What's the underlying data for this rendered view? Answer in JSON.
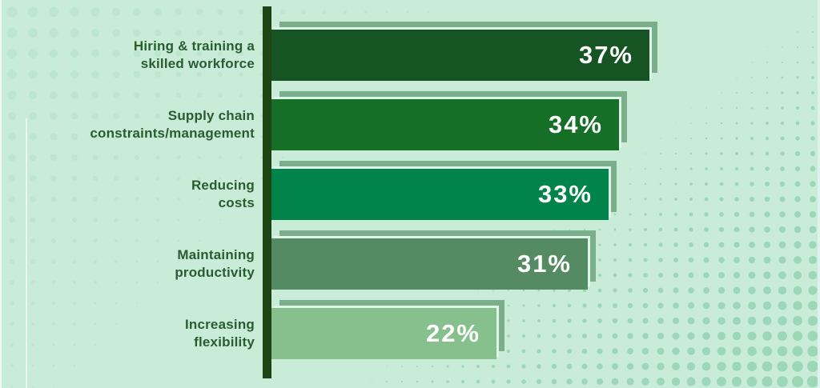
{
  "chart_data": {
    "type": "bar",
    "orientation": "horizontal",
    "title": "",
    "xlabel": "",
    "ylabel": "",
    "legend": "none",
    "gridlines": "none",
    "unit": "%",
    "categories": [
      "Hiring & training a\nskilled workforce",
      "Supply chain\nconstraints/management",
      "Reducing\ncosts",
      "Maintaining\nproductivity",
      "Increasing\nflexibility"
    ],
    "values": [
      37,
      34,
      33,
      31,
      22
    ],
    "value_labels": [
      "37%",
      "34%",
      "33%",
      "31%",
      "22%"
    ],
    "bar_colors": [
      "#175423",
      "#156f26",
      "#008449",
      "#548b63",
      "#86c18d"
    ],
    "bar_shadow_color": "#7bae8a",
    "bar_shadow_gap_color": "#e0f5e9",
    "axis_color": "#1e4513",
    "category_label_color": "#2a5c31",
    "value_text_color": "#ffffff",
    "background_color": "#c9ecd8",
    "dot_color_top_left": "#bce6ce",
    "dot_color_bottom_right": "#9cd8b8"
  }
}
